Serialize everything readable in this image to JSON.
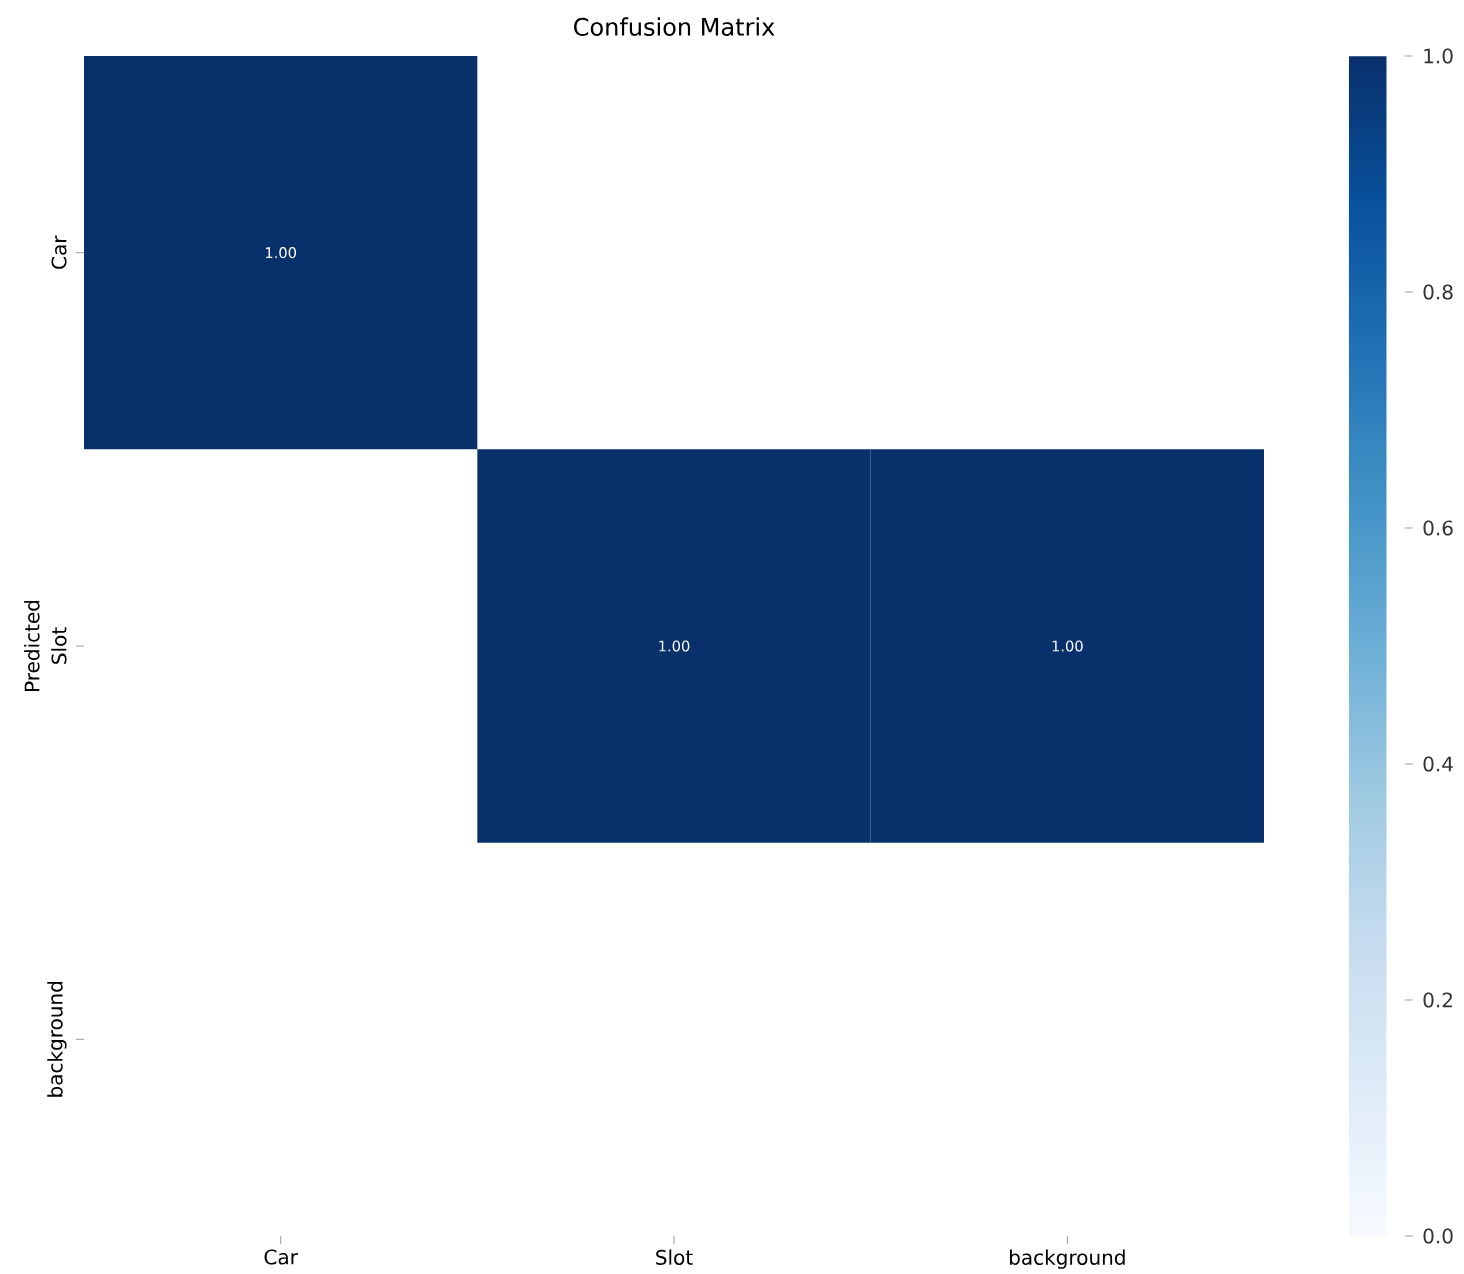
{
  "chart_data": {
    "type": "heatmap",
    "title": "Confusion Matrix",
    "ylabel": "Predicted",
    "categories": [
      "Car",
      "Slot",
      "background"
    ],
    "y_categories": [
      "Car",
      "Slot",
      "background"
    ],
    "cells": [
      [
        1.0,
        null,
        null
      ],
      [
        null,
        1.0,
        1.0
      ],
      [
        null,
        null,
        null
      ]
    ],
    "cell_labels": [
      [
        "1.00",
        null,
        null
      ],
      [
        null,
        "1.00",
        "1.00"
      ],
      [
        null,
        null,
        null
      ]
    ],
    "clim": [
      0,
      1
    ],
    "cticks": [
      {
        "value": 0,
        "label": "0.0"
      },
      {
        "value": 0.2,
        "label": "0.2"
      },
      {
        "value": 0.4,
        "label": "0.4"
      },
      {
        "value": 0.6,
        "label": "0.6"
      },
      {
        "value": 0.8,
        "label": "0.8"
      },
      {
        "value": 1,
        "label": "1.0"
      }
    ]
  }
}
